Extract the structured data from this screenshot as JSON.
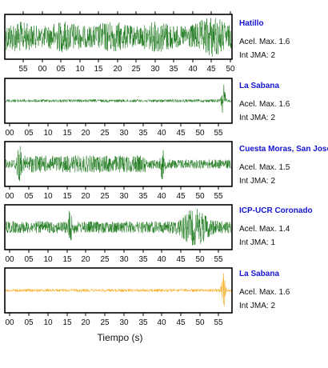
{
  "chart_data": [
    {
      "type": "line",
      "station": "Hatillo",
      "acel_label": "Acel. Max. 1.6",
      "jma_label": "Int JMA: 2",
      "color": "#0a6e0a",
      "tick_labels": [
        "55",
        "00",
        "05",
        "10",
        "15",
        "20",
        "25",
        "30",
        "35",
        "40",
        "45",
        "50"
      ],
      "tick_position": "bottom",
      "waveform": "high broadband noise throughout, slight increase near 45-50"
    },
    {
      "type": "line",
      "station": "La Sabana",
      "acel_label": "Acel. Max. 1.6",
      "jma_label": "Int JMA: 2",
      "color": "#0a6e0a",
      "tick_labels": [
        "00",
        "05",
        "10",
        "15",
        "20",
        "25",
        "30",
        "35",
        "40",
        "45",
        "50",
        "55"
      ],
      "tick_position": "bottom",
      "waveform": "low-amplitude noise with a sharp spike near 57"
    },
    {
      "type": "line",
      "station": "Cuesta Moras, San Jose",
      "acel_label": "Acel. Max. 1.5",
      "jma_label": "Int JMA: 2",
      "color": "#0a6e0a",
      "tick_labels": [
        "00",
        "05",
        "10",
        "15",
        "20",
        "25",
        "30",
        "35",
        "40",
        "45",
        "50",
        "55"
      ],
      "tick_position": "bottom",
      "waveform": "spike near 04, moderate shaking 05-35, spike near 40"
    },
    {
      "type": "line",
      "station": "ICP-UCR Coronado",
      "acel_label": "Acel. Max. 1.4",
      "jma_label": "Int JMA: 1",
      "color": "#0a6e0a",
      "tick_labels": [
        "00",
        "05",
        "10",
        "15",
        "20",
        "25",
        "30",
        "35",
        "40",
        "45",
        "50",
        "55"
      ],
      "tick_position": "bottom",
      "waveform": "moderate noise, spike near 17, strong burst 45-52"
    },
    {
      "type": "line",
      "station": "La Sabana",
      "acel_label": "Acel. Max. 1.6",
      "jma_label": "Int JMA: 2",
      "color": "#f5a000",
      "tick_labels": [
        "00",
        "05",
        "10",
        "15",
        "20",
        "25",
        "30",
        "35",
        "40",
        "45",
        "50",
        "55"
      ],
      "tick_position": "bottom",
      "waveform": "low-amplitude noise with a sharp spike near 57"
    }
  ],
  "xlabel": "Tiempo (s)"
}
